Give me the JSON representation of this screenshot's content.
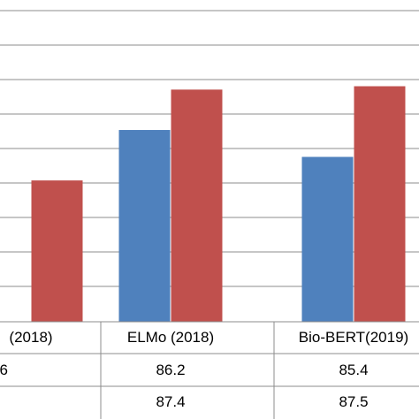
{
  "chart_data": {
    "type": "bar",
    "categories": [
      "(2018)",
      "ELMo (2018)",
      "Bio-BERT(2019)"
    ],
    "series": [
      {
        "color": "#4f81bd",
        "values": [
          null,
          86.2,
          85.4
        ]
      },
      {
        "color": "#c0504d",
        "values": [
          84.7,
          87.4,
          87.5
        ]
      }
    ],
    "table_rows": [
      [
        "6",
        "86.2",
        "85.4"
      ],
      [
        "",
        "87.4",
        "87.5"
      ]
    ],
    "ylim": [
      80.5,
      89.8
    ],
    "grid": true,
    "legend": "none"
  }
}
